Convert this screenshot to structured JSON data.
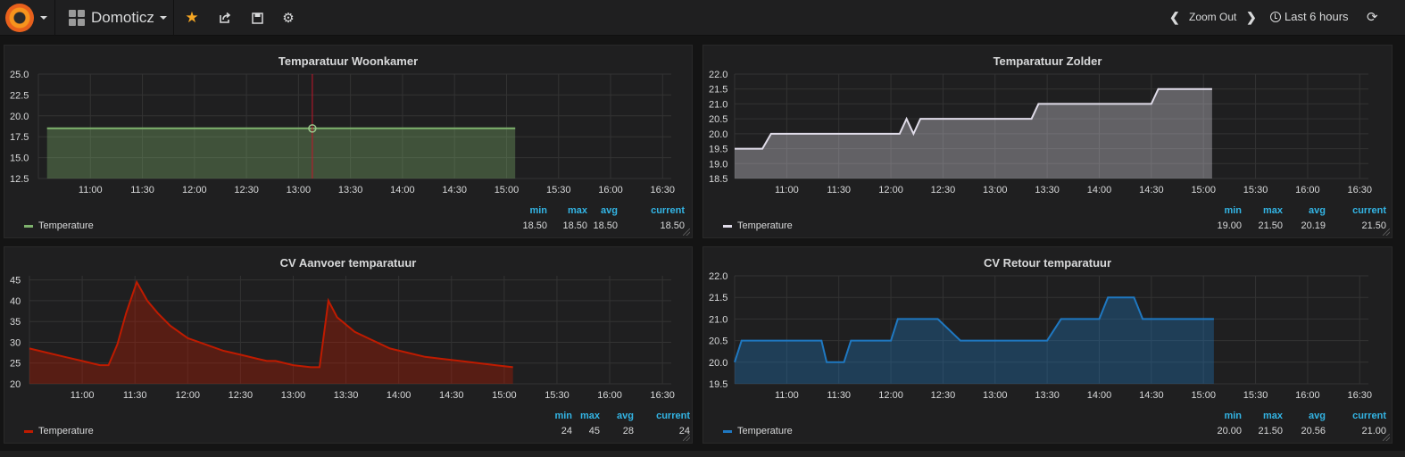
{
  "navbar": {
    "dashboard_title": "Domoticz",
    "zoom_out": "Zoom Out",
    "time_range": "Last 6 hours"
  },
  "time_ticks": [
    "11:00",
    "11:30",
    "12:00",
    "12:30",
    "13:00",
    "13:30",
    "14:00",
    "14:30",
    "15:00",
    "15:30",
    "16:00",
    "16:30"
  ],
  "legend_headers": {
    "min": "min",
    "max": "max",
    "avg": "avg",
    "current": "current"
  },
  "colors": {
    "green": "#7eb26d",
    "white": "#e0dce9",
    "red": "#bf1b00",
    "blue": "#1f78c1",
    "accent": "#33b5e5"
  },
  "panels": [
    {
      "title": "Temparatuur Woonkamer",
      "legend_name": "Temperature",
      "stats": {
        "min": "18.50",
        "max": "18.50",
        "avg": "18.50",
        "current": "18.50"
      },
      "chart_data": {
        "type": "area",
        "series": [
          {
            "name": "Temperature",
            "color": "#7eb26d",
            "x": [
              "10:35",
              "15:05"
            ],
            "y": [
              18.5,
              18.5
            ]
          }
        ],
        "yticks": [
          "12.5",
          "15.0",
          "17.5",
          "20.0",
          "22.5",
          "25.0"
        ],
        "ylim": [
          12.5,
          25.0
        ],
        "xlim": [
          "10:30",
          "16:35"
        ],
        "crosshair_time": "13:08"
      }
    },
    {
      "title": "Temparatuur Zolder",
      "legend_name": "Temperature",
      "stats": {
        "min": "19.00",
        "max": "21.50",
        "avg": "20.19",
        "current": "21.50"
      },
      "chart_data": {
        "type": "area",
        "series": [
          {
            "name": "Temperature",
            "color": "#e0dce9",
            "x": [
              "10:30",
              "10:46",
              "10:51",
              "11:38",
              "12:05",
              "12:09",
              "12:13",
              "12:17",
              "12:20",
              "12:51",
              "13:21",
              "13:25",
              "14:25",
              "14:30",
              "14:34",
              "14:56",
              "15:05"
            ],
            "y": [
              19.5,
              19.5,
              20.0,
              20.0,
              20.0,
              20.5,
              20.0,
              20.5,
              20.5,
              20.5,
              20.5,
              21.0,
              21.0,
              21.0,
              21.5,
              21.5,
              21.5
            ]
          }
        ],
        "yticks": [
          "18.5",
          "19.0",
          "19.5",
          "20.0",
          "20.5",
          "21.0",
          "21.5",
          "22.0"
        ],
        "ylim": [
          18.5,
          22.0
        ],
        "xlim": [
          "10:30",
          "16:35"
        ]
      }
    },
    {
      "title": "CV Aanvoer temparatuur",
      "legend_name": "Temperature",
      "stats": {
        "min": "24",
        "max": "45",
        "avg": "28",
        "current": "24"
      },
      "chart_data": {
        "type": "area",
        "series": [
          {
            "name": "Temperature",
            "color": "#bf1b00",
            "x": [
              "10:30",
              "10:40",
              "10:50",
              "11:00",
              "11:10",
              "11:15",
              "11:20",
              "11:25",
              "11:31",
              "11:37",
              "11:43",
              "11:50",
              "12:00",
              "12:10",
              "12:20",
              "12:30",
              "12:40",
              "12:45",
              "12:50",
              "13:00",
              "13:10",
              "13:15",
              "13:20",
              "13:25",
              "13:35",
              "13:45",
              "13:55",
              "14:05",
              "14:15",
              "14:25",
              "14:35",
              "14:45",
              "14:55",
              "15:05"
            ],
            "y": [
              28.5,
              27.5,
              26.5,
              25.5,
              24.5,
              24.5,
              29.5,
              37,
              44.5,
              40,
              37,
              34,
              31,
              29.5,
              28,
              27,
              26,
              25.5,
              25.5,
              24.5,
              24,
              24,
              40,
              36,
              32.5,
              30.5,
              28.5,
              27.5,
              26.5,
              26,
              25.5,
              25,
              24.5,
              24
            ]
          }
        ],
        "yticks": [
          "20",
          "25",
          "30",
          "35",
          "40",
          "45"
        ],
        "ylim": [
          20,
          46
        ],
        "xlim": [
          "10:30",
          "16:35"
        ]
      }
    },
    {
      "title": "CV Retour temparatuur",
      "legend_name": "Temperature",
      "stats": {
        "min": "20.00",
        "max": "21.50",
        "avg": "20.56",
        "current": "21.00"
      },
      "chart_data": {
        "type": "area",
        "series": [
          {
            "name": "Temperature",
            "color": "#1f78c1",
            "x": [
              "10:30",
              "10:34",
              "10:50",
              "11:20",
              "11:23",
              "11:30",
              "11:33",
              "11:37",
              "11:43",
              "11:46",
              "12:00",
              "12:04",
              "12:27",
              "12:40",
              "12:53",
              "13:30",
              "13:38",
              "13:47",
              "14:00",
              "14:05",
              "14:20",
              "14:25",
              "14:40",
              "15:00",
              "15:06"
            ],
            "y": [
              20.0,
              20.5,
              20.5,
              20.5,
              20.0,
              20.0,
              20.0,
              20.5,
              20.5,
              20.5,
              20.5,
              21.0,
              21.0,
              20.5,
              20.5,
              20.5,
              21.0,
              21.0,
              21.0,
              21.5,
              21.5,
              21.0,
              21.0,
              21.0,
              21.0
            ]
          }
        ],
        "yticks": [
          "19.5",
          "20.0",
          "20.5",
          "21.0",
          "21.5",
          "22.0"
        ],
        "ylim": [
          19.5,
          22.0
        ],
        "xlim": [
          "10:30",
          "16:35"
        ]
      }
    }
  ]
}
